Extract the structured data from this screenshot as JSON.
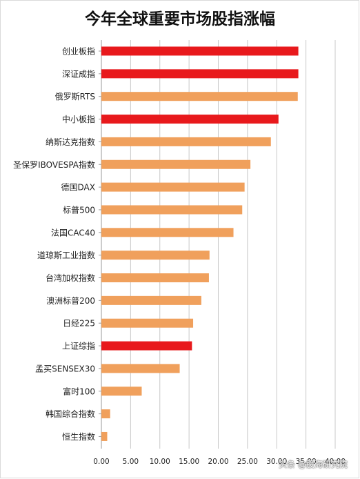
{
  "chart_data": {
    "type": "bar",
    "orientation": "horizontal",
    "title": "今年全球重要市场股指涨幅",
    "categories": [
      "创业板指",
      "深证成指",
      "俄罗斯RTS",
      "中小板指",
      "纳斯达克指数",
      "圣保罗IBOVESPA指数",
      "德国DAX",
      "标普500",
      "法国CAC40",
      "道琼斯工业指数",
      "台湾加权指数",
      "澳洲标普200",
      "日经225",
      "上证综指",
      "孟买SENSEX30",
      "富时100",
      "韩国综合指数",
      "恒生指数"
    ],
    "values": [
      33.7,
      33.7,
      33.6,
      30.3,
      29.0,
      25.5,
      24.5,
      24.1,
      22.6,
      18.5,
      18.4,
      17.1,
      15.7,
      15.5,
      13.4,
      6.9,
      1.5,
      1.0
    ],
    "colors": [
      "#e8191c",
      "#e8191c",
      "#f0a05c",
      "#e8191c",
      "#f0a05c",
      "#f0a05c",
      "#f0a05c",
      "#f0a05c",
      "#f0a05c",
      "#f0a05c",
      "#f0a05c",
      "#f0a05c",
      "#f0a05c",
      "#e8191c",
      "#f0a05c",
      "#f0a05c",
      "#f0a05c",
      "#f0a05c"
    ],
    "xlim": [
      0,
      40
    ],
    "ticks": [
      "0.00",
      "5.00",
      "10.00",
      "15.00",
      "20.00",
      "25.00",
      "30.00",
      "35.00",
      "40.00"
    ],
    "grid": true,
    "xlabel": "",
    "ylabel": ""
  },
  "watermark": "头条 @股海研究院"
}
